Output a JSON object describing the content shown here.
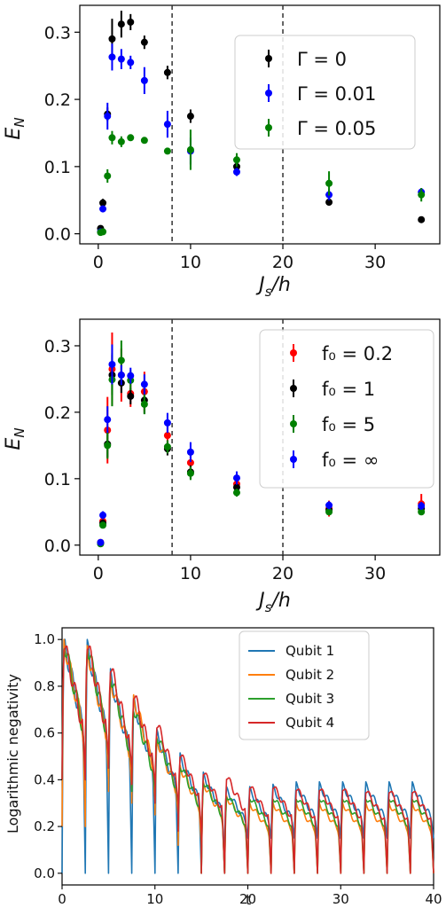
{
  "chart_data": [
    {
      "type": "scatter",
      "xlabel": "J_s/h",
      "ylabel": "E_N",
      "xlim": [
        -2,
        37
      ],
      "ylim": [
        -0.015,
        0.34
      ],
      "xticks": [
        "0",
        "10",
        "20",
        "30"
      ],
      "yticks": [
        "0.0",
        "0.1",
        "0.2",
        "0.3"
      ],
      "vlines": [
        8,
        20
      ],
      "legend": "top-right",
      "series": [
        {
          "name": "Γ = 0",
          "color": "#000000",
          "x": [
            0.25,
            0.5,
            1,
            1.5,
            2.5,
            3.5,
            5,
            7.5,
            10,
            15,
            25,
            35
          ],
          "y": [
            0.008,
            0.046,
            0.178,
            0.29,
            0.312,
            0.315,
            0.285,
            0.24,
            0.175,
            0.1,
            0.047,
            0.021
          ],
          "err": [
            0.004,
            0.006,
            0.01,
            0.03,
            0.02,
            0.012,
            0.01,
            0.01,
            0.01,
            0.006,
            0.005,
            0.002
          ]
        },
        {
          "name": "Γ = 0.01",
          "color": "#0000ff",
          "x": [
            0.25,
            0.5,
            1,
            1.5,
            2.5,
            3.5,
            5,
            7.5,
            10,
            15,
            25,
            35
          ],
          "y": [
            0.003,
            0.037,
            0.175,
            0.263,
            0.26,
            0.255,
            0.228,
            0.163,
            0.123,
            0.092,
            0.058,
            0.062
          ],
          "err": [
            0.003,
            0.005,
            0.02,
            0.02,
            0.015,
            0.01,
            0.02,
            0.02,
            0.02,
            0.006,
            0.008,
            0.006
          ]
        },
        {
          "name": "Γ = 0.05",
          "color": "#008000",
          "x": [
            0.25,
            0.5,
            1,
            1.5,
            2.5,
            3.5,
            5,
            7.5,
            10,
            15,
            25,
            35
          ],
          "y": [
            0.002,
            0.003,
            0.086,
            0.143,
            0.137,
            0.143,
            0.139,
            0.123,
            0.125,
            0.11,
            0.075,
            0.058
          ],
          "err": [
            0.002,
            0.002,
            0.01,
            0.01,
            0.008,
            0.005,
            0.004,
            0.004,
            0.03,
            0.01,
            0.018,
            0.01
          ]
        }
      ]
    },
    {
      "type": "scatter",
      "xlabel": "J_s/h",
      "ylabel": "E_N",
      "xlim": [
        -2,
        37
      ],
      "ylim": [
        -0.015,
        0.34
      ],
      "xticks": [
        "0",
        "10",
        "20",
        "30"
      ],
      "yticks": [
        "0.0",
        "0.1",
        "0.2",
        "0.3"
      ],
      "vlines": [
        8,
        20
      ],
      "legend": "top-right",
      "series": [
        {
          "name": "f₀ = 0.2",
          "color": "#ff0000",
          "x": [
            0.25,
            0.5,
            1,
            1.5,
            2.5,
            3.5,
            5,
            7.5,
            10,
            15,
            25,
            35
          ],
          "y": [
            0.004,
            0.036,
            0.173,
            0.265,
            0.256,
            0.228,
            0.231,
            0.165,
            0.124,
            0.092,
            0.055,
            0.062
          ],
          "err": [
            0.003,
            0.006,
            0.05,
            0.055,
            0.04,
            0.02,
            0.03,
            0.02,
            0.02,
            0.015,
            0.012,
            0.015
          ]
        },
        {
          "name": "f₀ = 1",
          "color": "#000000",
          "x": [
            0.25,
            0.5,
            1,
            1.5,
            2.5,
            3.5,
            5,
            7.5,
            10,
            15,
            25,
            35
          ],
          "y": [
            0.003,
            0.033,
            0.152,
            0.256,
            0.244,
            0.224,
            0.218,
            0.145,
            0.11,
            0.087,
            0.053,
            0.055
          ],
          "err": [
            0.003,
            0.005,
            0.02,
            0.03,
            0.015,
            0.012,
            0.02,
            0.01,
            0.01,
            0.01,
            0.006,
            0.006
          ]
        },
        {
          "name": "f₀ = 5",
          "color": "#008000",
          "x": [
            0.25,
            0.5,
            1,
            1.5,
            2.5,
            3.5,
            5,
            7.5,
            10,
            15,
            25,
            35
          ],
          "y": [
            0.002,
            0.03,
            0.15,
            0.249,
            0.278,
            0.248,
            0.212,
            0.148,
            0.108,
            0.079,
            0.05,
            0.05
          ],
          "err": [
            0.002,
            0.005,
            0.02,
            0.04,
            0.03,
            0.015,
            0.015,
            0.01,
            0.01,
            0.006,
            0.005,
            0.005
          ]
        },
        {
          "name": "f₀ = ∞",
          "color": "#0000ff",
          "x": [
            0.25,
            0.5,
            1,
            1.5,
            2.5,
            3.5,
            5,
            7.5,
            10,
            15,
            25,
            35
          ],
          "y": [
            0.004,
            0.045,
            0.189,
            0.272,
            0.256,
            0.255,
            0.242,
            0.184,
            0.14,
            0.101,
            0.06,
            0.059
          ],
          "err": [
            0.003,
            0.006,
            0.02,
            0.03,
            0.015,
            0.012,
            0.015,
            0.015,
            0.015,
            0.01,
            0.006,
            0.006
          ]
        }
      ]
    },
    {
      "type": "line",
      "xlabel": "t",
      "ylabel": "Logarithmic negativity",
      "xlim": [
        0,
        40
      ],
      "ylim": [
        -0.05,
        1.05
      ],
      "xticks": [
        "0",
        "10",
        "20",
        "30",
        "40"
      ],
      "yticks": [
        "0.0",
        "0.2",
        "0.4",
        "0.6",
        "0.8",
        "1.0"
      ],
      "legend": "top-center",
      "period": 2.5,
      "series": [
        {
          "name": "Qubit 1",
          "color": "#1f77b4",
          "peaks": [
            1.0,
            0.98,
            0.85,
            0.74,
            0.6,
            0.5,
            0.42,
            0.36,
            0.36,
            0.37,
            0.38,
            0.38,
            0.38,
            0.38,
            0.38,
            0.38
          ],
          "floors": [
            0.0,
            0.0,
            0.0,
            0.0,
            0.0,
            0.0,
            0.0,
            0.15,
            0.15,
            0.15,
            0.15,
            0.15,
            0.15,
            0.15,
            0.15,
            0.15
          ]
        },
        {
          "name": "Qubit 2",
          "color": "#ff7f0e",
          "peaks": [
            1.0,
            0.97,
            0.84,
            0.76,
            0.58,
            0.46,
            0.39,
            0.33,
            0.3,
            0.3,
            0.3,
            0.3,
            0.3,
            0.3,
            0.3,
            0.3
          ],
          "floors": [
            0.2,
            0.4,
            0.35,
            0.3,
            0.25,
            0.12,
            0.0,
            0.0,
            0.0,
            0.0,
            0.0,
            0.0,
            0.0,
            0.0,
            0.0,
            0.0
          ]
        },
        {
          "name": "Qubit 3",
          "color": "#2ca02c",
          "peaks": [
            1.0,
            0.99,
            0.86,
            0.72,
            0.6,
            0.47,
            0.4,
            0.34,
            0.33,
            0.33,
            0.33,
            0.33,
            0.33,
            0.33,
            0.33,
            0.33
          ],
          "floors": [
            0.4,
            0.5,
            0.45,
            0.35,
            0.3,
            0.2,
            0.0,
            0.0,
            0.0,
            0.0,
            0.0,
            0.0,
            0.0,
            0.0,
            0.0,
            0.0
          ]
        },
        {
          "name": "Qubit 4",
          "color": "#d62728",
          "peaks": [
            1.0,
            1.0,
            0.9,
            0.78,
            0.65,
            0.52,
            0.44,
            0.42,
            0.38,
            0.38,
            0.37,
            0.37,
            0.37,
            0.36,
            0.36,
            0.36
          ],
          "floors": [
            0.4,
            0.5,
            0.45,
            0.38,
            0.3,
            0.18,
            0.0,
            0.0,
            0.0,
            0.0,
            0.0,
            0.0,
            0.0,
            0.0,
            0.0,
            0.0
          ]
        }
      ]
    }
  ]
}
